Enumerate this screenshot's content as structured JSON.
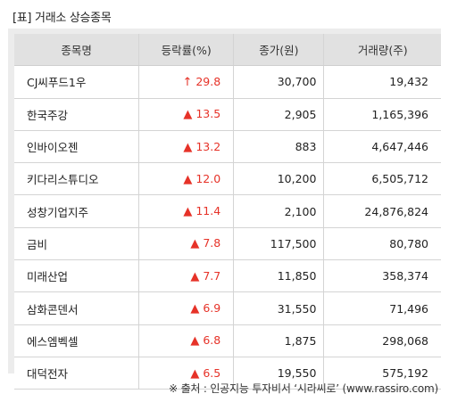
{
  "title": "[표] 거래소 상승종목",
  "headers": {
    "name": "종목명",
    "rate": "등락률(%)",
    "price": "종가(원)",
    "volume": "거래량(주)"
  },
  "rows": [
    {
      "name": "CJ씨푸드1우",
      "arrow": "↑",
      "arrow_icon": "up-limit-arrow-icon",
      "rate": "29.8",
      "price": "30,700",
      "volume": "19,432"
    },
    {
      "name": "한국주강",
      "arrow": "▲",
      "arrow_icon": "up-triangle-icon",
      "rate": "13.5",
      "price": "2,905",
      "volume": "1,165,396"
    },
    {
      "name": "인바이오젠",
      "arrow": "▲",
      "arrow_icon": "up-triangle-icon",
      "rate": "13.2",
      "price": "883",
      "volume": "4,647,446"
    },
    {
      "name": "키다리스튜디오",
      "arrow": "▲",
      "arrow_icon": "up-triangle-icon",
      "rate": "12.0",
      "price": "10,200",
      "volume": "6,505,712"
    },
    {
      "name": "성창기업지주",
      "arrow": "▲",
      "arrow_icon": "up-triangle-icon",
      "rate": "11.4",
      "price": "2,100",
      "volume": "24,876,824"
    },
    {
      "name": "금비",
      "arrow": "▲",
      "arrow_icon": "up-triangle-icon",
      "rate": "7.8",
      "price": "117,500",
      "volume": "80,780"
    },
    {
      "name": "미래산업",
      "arrow": "▲",
      "arrow_icon": "up-triangle-icon",
      "rate": "7.7",
      "price": "11,850",
      "volume": "358,374"
    },
    {
      "name": "삼화콘덴서",
      "arrow": "▲",
      "arrow_icon": "up-triangle-icon",
      "rate": "6.9",
      "price": "31,550",
      "volume": "71,496"
    },
    {
      "name": "에스엠벡셀",
      "arrow": "▲",
      "arrow_icon": "up-triangle-icon",
      "rate": "6.8",
      "price": "1,875",
      "volume": "298,068"
    },
    {
      "name": "대덕전자",
      "arrow": "▲",
      "arrow_icon": "up-triangle-icon",
      "rate": "6.5",
      "price": "19,550",
      "volume": "575,192"
    }
  ],
  "footer": "※ 출처 : 인공지능 투자비서 ‘시라씨로’ (www.rassiro.com)",
  "colors": {
    "up": "#e63228",
    "header_bg": "#e1e1e1",
    "panel_bg": "#ececec"
  }
}
